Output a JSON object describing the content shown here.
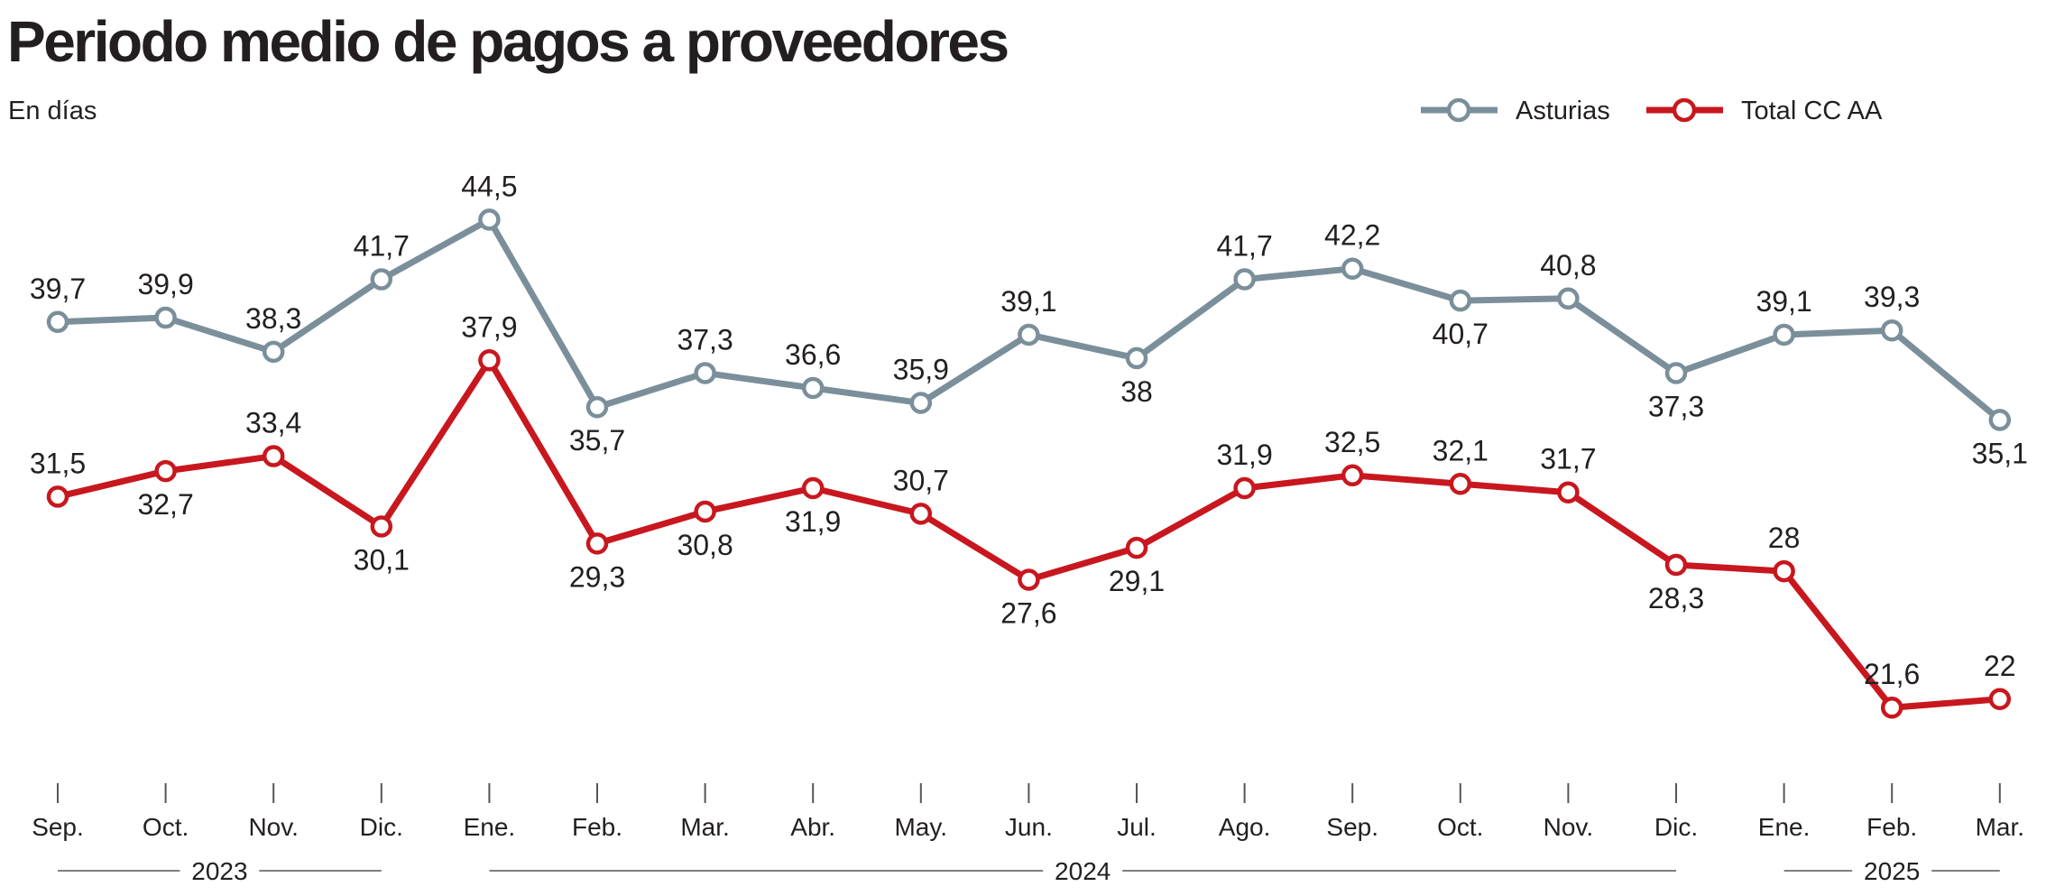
{
  "header": {
    "title": "Periodo medio de pagos a proveedores",
    "subtitle": "En días"
  },
  "colors": {
    "asturias": "#7a8f9a",
    "total": "#c8171e",
    "axis": "#555555",
    "text": "#231f20"
  },
  "chart_data": {
    "type": "line",
    "title": "Periodo medio de pagos a proveedores",
    "subtitle": "En días",
    "xlabel": "",
    "ylabel": "",
    "categories": [
      "Sep.",
      "Oct.",
      "Nov.",
      "Dic.",
      "Ene.",
      "Feb.",
      "Mar.",
      "Abr.",
      "May.",
      "Jun.",
      "Jul.",
      "Ago.",
      "Sep.",
      "Oct.",
      "Nov.",
      "Dic.",
      "Ene.",
      "Feb.",
      "Mar."
    ],
    "year_groups": [
      {
        "label": "2023",
        "start": 0,
        "end": 3
      },
      {
        "label": "2024",
        "start": 4,
        "end": 15
      },
      {
        "label": "2025",
        "start": 16,
        "end": 18
      }
    ],
    "ylim": [
      20,
      46
    ],
    "grid": false,
    "legend": "top-right",
    "series": [
      {
        "name": "Asturias",
        "values": [
          39.7,
          39.9,
          38.3,
          41.7,
          44.5,
          35.7,
          37.3,
          36.6,
          35.9,
          39.1,
          38,
          41.7,
          42.2,
          40.7,
          40.8,
          37.3,
          39.1,
          39.3,
          35.1
        ],
        "labels": [
          "39,7",
          "39,9",
          "38,3",
          "41,7",
          "44,5",
          "35,7",
          "37,3",
          "36,6",
          "35,9",
          "39,1",
          "38",
          "41,7",
          "42,2",
          "40,7",
          "40,8",
          "37,3",
          "39,1",
          "39,3",
          "35,1"
        ],
        "label_pos": [
          "above",
          "above",
          "above",
          "above",
          "above",
          "below",
          "above",
          "above",
          "above",
          "above",
          "below",
          "above",
          "above",
          "below",
          "above",
          "below",
          "above",
          "above",
          "below"
        ]
      },
      {
        "name": "Total CC AA",
        "values": [
          31.5,
          32.7,
          33.4,
          30.1,
          37.9,
          29.3,
          30.8,
          31.9,
          30.7,
          27.6,
          29.1,
          31.9,
          32.5,
          32.1,
          31.7,
          28.3,
          28,
          21.6,
          22
        ],
        "labels": [
          "31,5",
          "32,7",
          "33,4",
          "30,1",
          "37,9",
          "29,3",
          "30,8",
          "31,9",
          "30,7",
          "27,6",
          "29,1",
          "31,9",
          "32,5",
          "32,1",
          "31,7",
          "28,3",
          "28",
          "21,6",
          "22"
        ],
        "label_pos": [
          "above",
          "below",
          "above",
          "below",
          "above",
          "below",
          "below",
          "below",
          "above",
          "below",
          "below",
          "above",
          "above",
          "above",
          "above",
          "below",
          "above",
          "above",
          "above"
        ]
      }
    ]
  }
}
